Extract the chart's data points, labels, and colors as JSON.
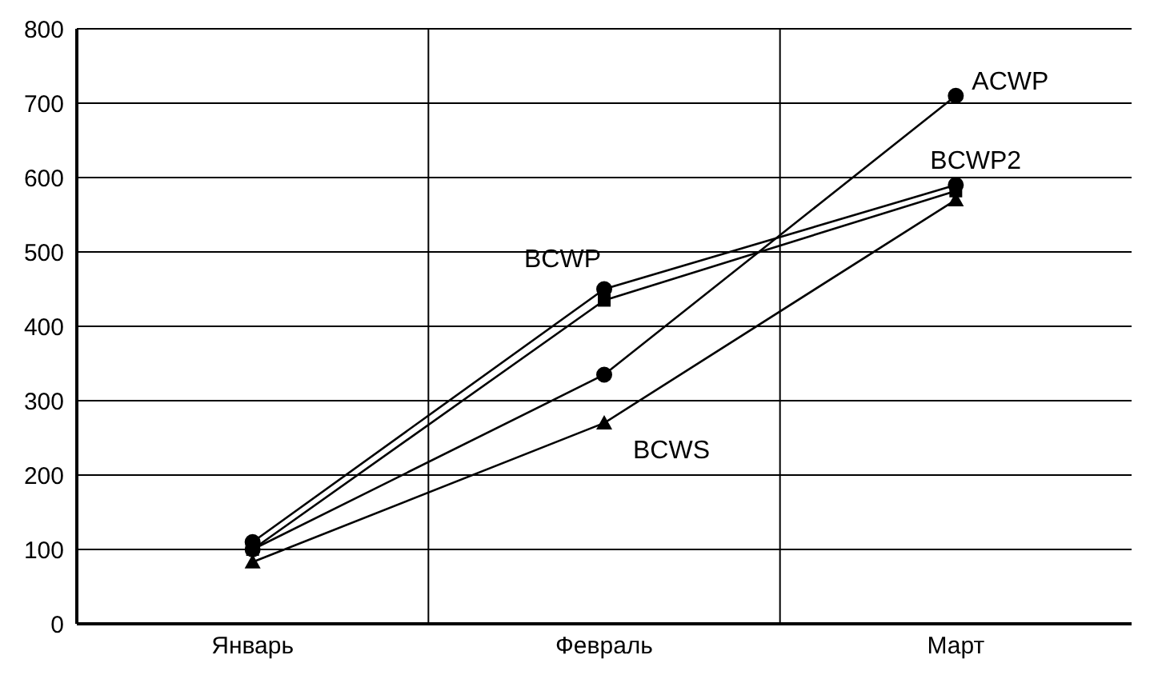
{
  "chart_data": {
    "type": "line",
    "categories": [
      "Январь",
      "Февраль",
      "Март"
    ],
    "series": [
      {
        "name": "ACWP",
        "color": "#000000",
        "marker": "circle",
        "values": [
          100,
          335,
          710
        ]
      },
      {
        "name": "BCWP",
        "color": "#000000",
        "marker": "circle",
        "values": [
          110,
          450,
          590
        ]
      },
      {
        "name": "BCWP2",
        "color": "#000000",
        "marker": "square",
        "values": [
          100,
          435,
          582
        ]
      },
      {
        "name": "BCWS",
        "color": "#000000",
        "marker": "triangle",
        "values": [
          83,
          270,
          570
        ]
      }
    ],
    "ylim": [
      0,
      800
    ],
    "yticks": [
      0,
      100,
      200,
      300,
      400,
      500,
      600,
      700,
      800
    ],
    "grid": true,
    "legend": false,
    "line_style": "solid"
  }
}
